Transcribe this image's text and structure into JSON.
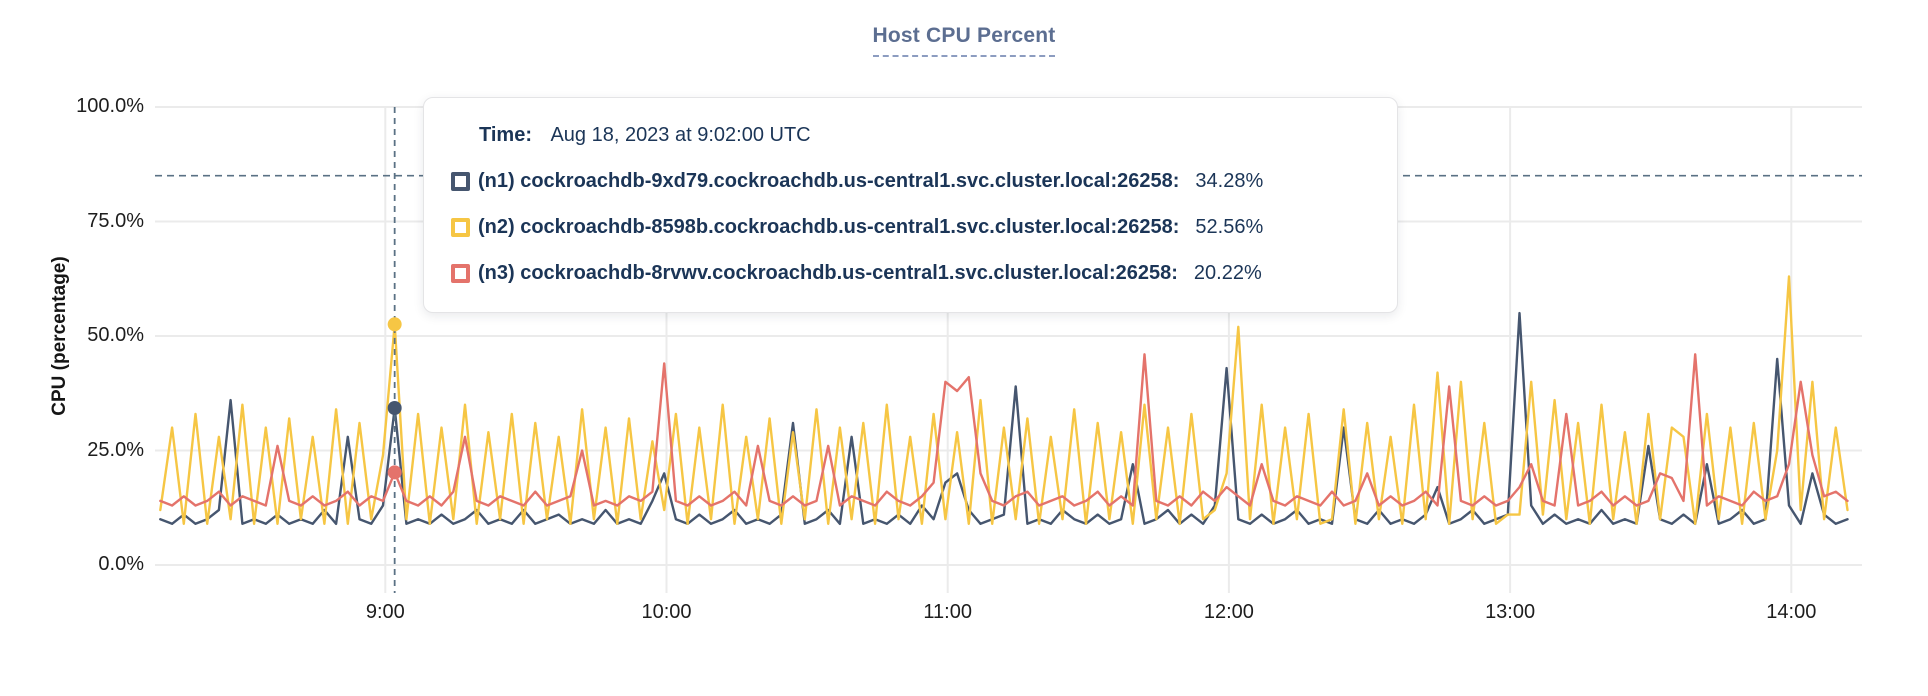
{
  "chart_data": {
    "type": "line",
    "title": "Host CPU Percent",
    "ylabel": "CPU (percentage)",
    "ylim": [
      0,
      100
    ],
    "grid": true,
    "y_ticks": [
      {
        "value": 100,
        "label": "100.0%"
      },
      {
        "value": 75,
        "label": "75.0%"
      },
      {
        "value": 50,
        "label": "50.0%"
      },
      {
        "value": 25,
        "label": "25.0%"
      },
      {
        "value": 0,
        "label": "0.0%"
      }
    ],
    "x_ticks": [
      {
        "hour": 9,
        "label": "9:00"
      },
      {
        "hour": 10,
        "label": "10:00"
      },
      {
        "hour": 11,
        "label": "11:00"
      },
      {
        "hour": 12,
        "label": "12:00"
      },
      {
        "hour": 13,
        "label": "13:00"
      },
      {
        "hour": 14,
        "label": "14:00"
      }
    ],
    "x_start_hour": 8.2,
    "x_step_minutes": 2.5,
    "threshold_pct": 85,
    "colors": {
      "grid": "#EBEBEB",
      "dash": "#5A7184",
      "tooltip_text": "#1B3557",
      "title": "#5C6E91"
    },
    "hover": {
      "time_label": "Time:",
      "time_value": "Aug 18, 2023 at 9:02:00 UTC",
      "x_hour": 9.0333,
      "values_pct": [
        34.28,
        52.56,
        20.22
      ]
    },
    "series": [
      {
        "id": "n1",
        "name": "(n1) cockroachdb-9xd79.cockroachdb.us-central1.svc.cluster.local:26258:",
        "value_label": "34.28%",
        "color": "#46566F",
        "values": [
          10,
          9,
          11,
          9,
          10,
          12,
          36,
          9,
          10,
          9,
          11,
          9,
          10,
          9,
          12,
          9,
          28,
          10,
          9,
          13,
          34.28,
          9,
          10,
          9,
          11,
          9,
          10,
          12,
          9,
          10,
          9,
          12,
          9,
          10,
          11,
          9,
          10,
          9,
          12,
          9,
          10,
          9,
          14,
          20,
          10,
          9,
          11,
          9,
          10,
          12,
          9,
          10,
          9,
          11,
          31,
          9,
          10,
          12,
          9,
          28,
          9,
          10,
          9,
          11,
          9,
          13,
          10,
          18,
          20,
          12,
          9,
          10,
          11,
          39,
          9,
          10,
          9,
          12,
          10,
          9,
          11,
          9,
          10,
          22,
          9,
          10,
          12,
          9,
          11,
          9,
          13,
          43,
          10,
          9,
          11,
          9,
          10,
          12,
          9,
          10,
          9,
          30,
          10,
          9,
          12,
          9,
          10,
          9,
          11,
          17,
          9,
          10,
          12,
          9,
          10,
          11,
          55,
          13,
          9,
          11,
          9,
          10,
          9,
          12,
          9,
          10,
          9,
          26,
          10,
          9,
          11,
          9,
          22,
          9,
          10,
          12,
          9,
          10,
          45,
          13,
          9,
          20,
          11,
          9,
          10
        ]
      },
      {
        "id": "n2",
        "name": "(n2) cockroachdb-8598b.cockroachdb.us-central1.svc.cluster.local:26258:",
        "value_label": "52.56%",
        "color": "#F6C644",
        "values": [
          12,
          30,
          9,
          33,
          9,
          28,
          10,
          35,
          9,
          30,
          9,
          32,
          10,
          28,
          9,
          34,
          9,
          31,
          10,
          24,
          52.56,
          10,
          33,
          9,
          30,
          10,
          35,
          9,
          29,
          10,
          33,
          9,
          31,
          10,
          28,
          9,
          34,
          10,
          30,
          9,
          32,
          10,
          27,
          12,
          33,
          9,
          30,
          10,
          35,
          9,
          28,
          10,
          32,
          9,
          29,
          10,
          34,
          9,
          30,
          10,
          31,
          9,
          35,
          10,
          28,
          9,
          33,
          10,
          29,
          9,
          36,
          9,
          30,
          10,
          32,
          9,
          28,
          10,
          34,
          9,
          31,
          10,
          29,
          9,
          35,
          10,
          30,
          9,
          33,
          10,
          12,
          20,
          52,
          10,
          35,
          9,
          30,
          10,
          33,
          9,
          10,
          34,
          9,
          31,
          10,
          28,
          9,
          35,
          10,
          42,
          9,
          40,
          10,
          31,
          9,
          11,
          11,
          40,
          11,
          36,
          10,
          31,
          9,
          35,
          10,
          29,
          9,
          33,
          10,
          30,
          28,
          9,
          33,
          10,
          30,
          9,
          31,
          10,
          25,
          63,
          12,
          40,
          10,
          30,
          12
        ]
      },
      {
        "id": "n3",
        "name": "(n3) cockroachdb-8rvwv.cockroachdb.us-central1.svc.cluster.local:26258:",
        "value_label": "20.22%",
        "color": "#E4736B",
        "values": [
          14,
          13,
          15,
          13,
          14,
          16,
          13,
          15,
          14,
          13,
          26,
          14,
          13,
          15,
          13,
          14,
          16,
          13,
          15,
          14,
          20.22,
          14,
          13,
          15,
          13,
          16,
          28,
          14,
          13,
          15,
          14,
          13,
          16,
          13,
          14,
          15,
          25,
          13,
          14,
          13,
          15,
          14,
          16,
          44,
          14,
          13,
          15,
          13,
          14,
          16,
          13,
          26,
          14,
          13,
          15,
          13,
          14,
          26,
          13,
          15,
          14,
          13,
          16,
          14,
          13,
          15,
          18,
          40,
          38,
          41,
          20,
          14,
          13,
          15,
          16,
          13,
          14,
          15,
          13,
          14,
          16,
          13,
          15,
          13,
          46,
          14,
          13,
          15,
          13,
          16,
          14,
          17,
          15,
          13,
          22,
          14,
          13,
          15,
          14,
          13,
          16,
          13,
          14,
          20,
          13,
          15,
          13,
          14,
          16,
          13,
          39,
          14,
          13,
          15,
          13,
          14,
          17,
          22,
          14,
          13,
          33,
          13,
          14,
          16,
          13,
          15,
          13,
          14,
          20,
          19,
          14,
          46,
          13,
          15,
          14,
          13,
          16,
          14,
          15,
          22,
          40,
          24,
          15,
          16,
          14
        ]
      }
    ]
  }
}
